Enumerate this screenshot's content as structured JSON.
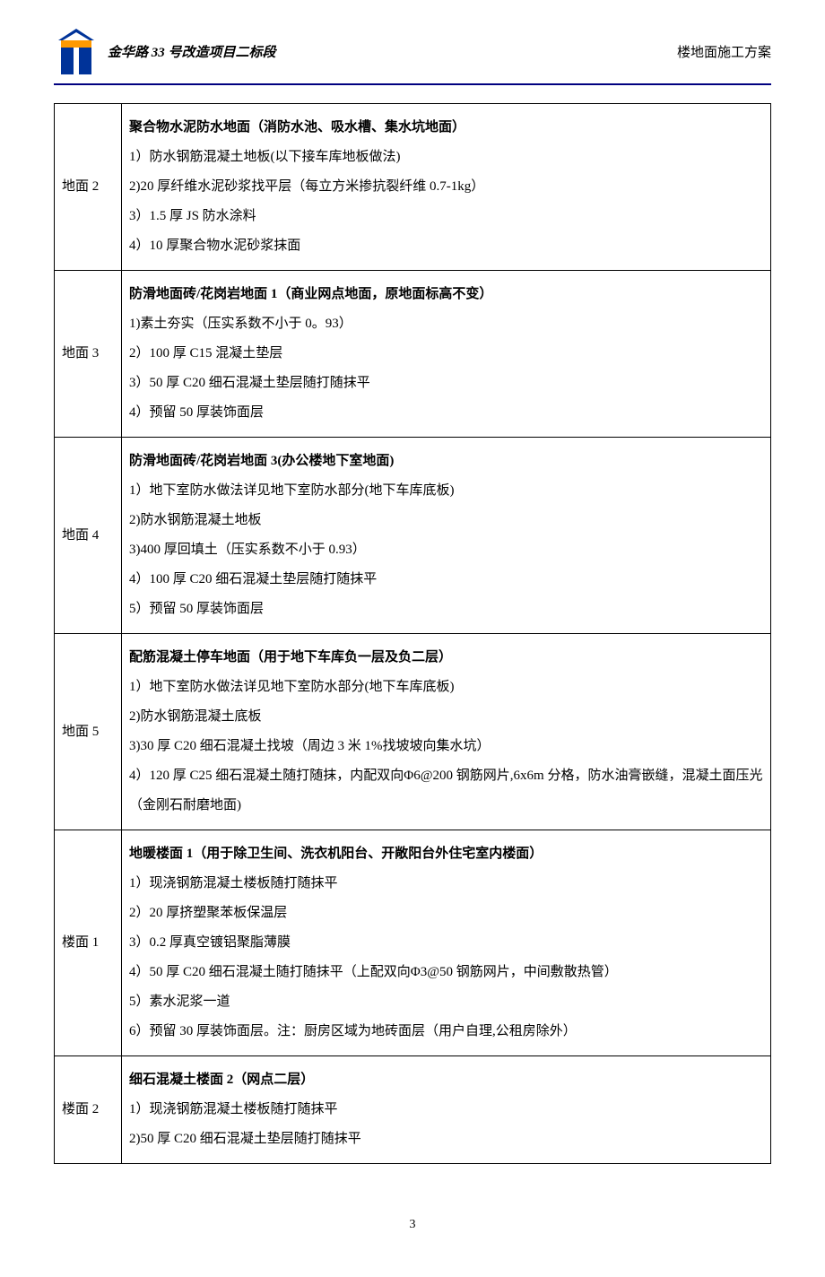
{
  "header": {
    "project_title": "金华路 33 号改造项目二标段",
    "doc_title": "楼地面施工方案",
    "logo_colors": {
      "blue": "#003399",
      "orange": "#ff9900"
    }
  },
  "table": {
    "rows": [
      {
        "label": "地面 2",
        "title": "聚合物水泥防水地面（消防水池、吸水槽、集水坑地面）",
        "items": [
          "1）防水钢筋混凝土地板(以下接车库地板做法)",
          "2)20 厚纤维水泥砂浆找平层（每立方米掺抗裂纤维 0.7-1kg）",
          "3）1.5 厚 JS 防水涂料",
          "4）10 厚聚合物水泥砂浆抹面"
        ]
      },
      {
        "label": "地面 3",
        "title": "防滑地面砖/花岗岩地面 1（商业网点地面，原地面标高不变）",
        "items": [
          "1)素土夯实（压实系数不小于 0。93）",
          "2）100 厚 C15 混凝土垫层",
          "3）50 厚 C20 细石混凝土垫层随打随抹平",
          "4）预留 50 厚装饰面层"
        ]
      },
      {
        "label": "地面 4",
        "title": "防滑地面砖/花岗岩地面 3(办公楼地下室地面)",
        "items": [
          "1）地下室防水做法详见地下室防水部分(地下车库底板)",
          "2)防水钢筋混凝土地板",
          "3)400 厚回填土（压实系数不小于 0.93）",
          "4）100 厚 C20 细石混凝土垫层随打随抹平",
          "5）预留 50 厚装饰面层"
        ]
      },
      {
        "label": "地面 5",
        "title": "配筋混凝土停车地面（用于地下车库负一层及负二层）",
        "items": [
          "1）地下室防水做法详见地下室防水部分(地下车库底板)",
          "2)防水钢筋混凝土底板",
          "3)30 厚 C20 细石混凝土找坡（周边 3 米 1%找坡坡向集水坑）",
          "4）120 厚 C25 细石混凝土随打随抹，内配双向Φ6@200 钢筋网片,6x6m 分格，防水油膏嵌缝，混凝土面压光（金刚石耐磨地面)"
        ]
      },
      {
        "label": "楼面 1",
        "title": "地暖楼面 1（用于除卫生间、洗衣机阳台、开敞阳台外住宅室内楼面）",
        "items": [
          "1）现浇钢筋混凝土楼板随打随抹平",
          "2）20 厚挤塑聚苯板保温层",
          "3）0.2 厚真空镀铝聚脂薄膜",
          "4）50 厚 C20 细石混凝土随打随抹平（上配双向Φ3@50 钢筋网片，中间敷散热管）",
          "5）素水泥浆一道",
          "6）预留 30 厚装饰面层。注：厨房区域为地砖面层（用户自理,公租房除外）"
        ]
      },
      {
        "label": "楼面 2",
        "title": "细石混凝土楼面 2（网点二层）",
        "items": [
          "1）现浇钢筋混凝土楼板随打随抹平",
          "2)50 厚 C20 细石混凝土垫层随打随抹平"
        ]
      }
    ]
  },
  "page_number": "3"
}
